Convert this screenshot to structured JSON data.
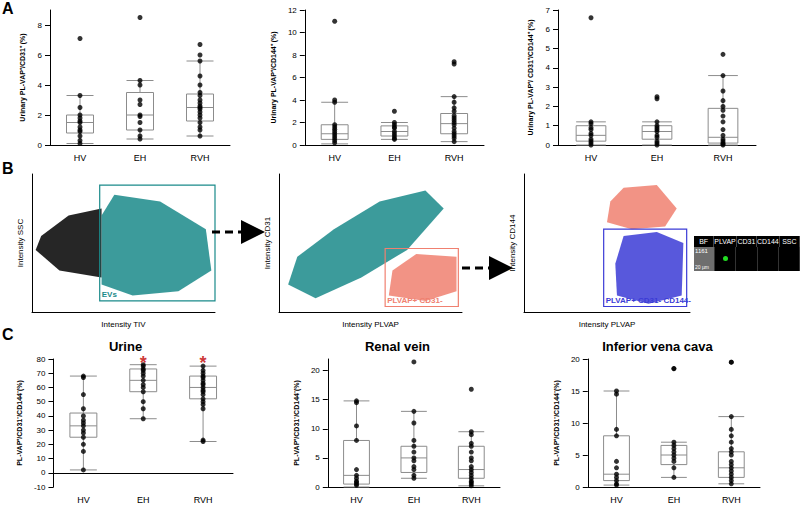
{
  "panel_labels": [
    "A",
    "B",
    "C"
  ],
  "chart_data": [
    {
      "panel": "A",
      "type": "boxplot",
      "ylabel": "Urinary PL-VAP⁺/CD31⁺ (%)",
      "categories": [
        "HV",
        "EH",
        "RVH"
      ],
      "boxes": [
        [
          0.1,
          0.8,
          1.5,
          2.0,
          3.3
        ],
        [
          0.4,
          1.0,
          2.0,
          3.5,
          4.3
        ],
        [
          0.6,
          1.6,
          2.5,
          3.4,
          5.6
        ]
      ],
      "points": [
        [
          7.1,
          3.3,
          2.5,
          2.0,
          1.8,
          1.6,
          1.5,
          1.2,
          1.0,
          0.9,
          0.6,
          0.3,
          0.1
        ],
        [
          8.5,
          4.3,
          4.0,
          3.0,
          2.7,
          2.0,
          1.9,
          1.5,
          1.0,
          0.6,
          0.4
        ],
        [
          6.7,
          6.0,
          5.6,
          4.6,
          4.0,
          3.5,
          3.3,
          3.0,
          2.8,
          2.6,
          2.5,
          2.4,
          2.2,
          2.0,
          1.8,
          1.5,
          1.2,
          1.0,
          0.6
        ]
      ],
      "ylim": [
        0,
        9
      ],
      "yticks": [
        0,
        2,
        4,
        6,
        8
      ],
      "color": "#000000",
      "grid": false
    },
    {
      "panel": "A",
      "type": "boxplot",
      "ylabel": "Urinary PL-VAP⁺/CD144⁺ (%)",
      "categories": [
        "HV",
        "EH",
        "RVH"
      ],
      "boxes": [
        [
          0.1,
          0.5,
          1.0,
          1.8,
          3.8
        ],
        [
          0.5,
          0.8,
          1.2,
          1.7,
          2.0
        ],
        [
          0.3,
          1.0,
          1.9,
          2.8,
          4.3
        ]
      ],
      "points": [
        [
          11,
          4.0,
          3.8,
          1.8,
          1.6,
          1.4,
          1.2,
          1.0,
          0.8,
          0.6,
          0.4,
          0.2
        ],
        [
          3.0,
          2.0,
          1.8,
          1.6,
          1.5,
          1.2,
          1.0,
          0.8,
          0.6,
          0.5
        ],
        [
          7.4,
          7.2,
          4.3,
          3.8,
          3.3,
          3.0,
          2.6,
          2.4,
          2.2,
          2.0,
          1.8,
          1.5,
          1.2,
          1.0,
          0.8,
          0.6,
          0.3
        ]
      ],
      "ylim": [
        0,
        12
      ],
      "yticks": [
        0,
        2,
        4,
        6,
        8,
        10,
        12
      ],
      "color": "#000000",
      "grid": false
    },
    {
      "panel": "A",
      "type": "boxplot",
      "ylabel": "Urinary PL-VAP⁺/ CD31⁺/CD144⁺ (%)",
      "categories": [
        "HV",
        "EH",
        "RVH"
      ],
      "boxes": [
        [
          0,
          0.2,
          0.5,
          1.0,
          1.2
        ],
        [
          0,
          0.3,
          0.7,
          1.0,
          1.2
        ],
        [
          0,
          0.1,
          0.4,
          1.9,
          3.6
        ]
      ],
      "points": [
        [
          6.6,
          1.2,
          1.1,
          0.9,
          0.8,
          0.6,
          0.5,
          0.3,
          0.2,
          0.1,
          0
        ],
        [
          2.5,
          2.4,
          1.2,
          1.0,
          0.9,
          0.8,
          0.7,
          0.5,
          0.4,
          0.2,
          0.1,
          0
        ],
        [
          4.7,
          3.6,
          2.8,
          2.3,
          2.0,
          1.8,
          1.5,
          1.2,
          0.8,
          0.5,
          0.3,
          0.2,
          0.1,
          0.05,
          0
        ]
      ],
      "ylim": [
        0,
        7
      ],
      "yticks": [
        0,
        1,
        2,
        3,
        4,
        5,
        6,
        7
      ],
      "color": "#000000",
      "grid": false
    },
    {
      "panel": "B",
      "type": "scatter",
      "xlabel": "Intensity TIV",
      "ylabel": "Intensity SSC",
      "xlim": [
        0,
        100
      ],
      "ylim": [
        0,
        100
      ],
      "tick_labels": false,
      "populations": [
        {
          "color": "#000000",
          "polygon": [
            [
              2,
              45
            ],
            [
              15,
              30
            ],
            [
              38,
              25
            ],
            [
              38,
              75
            ],
            [
              20,
              70
            ],
            [
              5,
              55
            ]
          ]
        },
        {
          "color": "#1a8a8a",
          "polygon": [
            [
              38,
              20
            ],
            [
              55,
              12
            ],
            [
              80,
              15
            ],
            [
              98,
              30
            ],
            [
              95,
              60
            ],
            [
              70,
              80
            ],
            [
              45,
              85
            ],
            [
              38,
              70
            ]
          ]
        }
      ],
      "gates": [
        {
          "label": "EVs",
          "color": "#1a8a8a",
          "x": [
            37,
            100
          ],
          "y": [
            8,
            92
          ]
        }
      ]
    },
    {
      "panel": "B",
      "type": "scatter",
      "xlabel": "Intensity PLVAP",
      "ylabel": "Intensity CD31",
      "xlim": [
        0,
        100
      ],
      "ylim": [
        0,
        100
      ],
      "tick_labels": false,
      "populations": [
        {
          "color": "#1a8a8a",
          "polygon": [
            [
              5,
              20
            ],
            [
              20,
              10
            ],
            [
              45,
              25
            ],
            [
              70,
              45
            ],
            [
              90,
              75
            ],
            [
              80,
              88
            ],
            [
              55,
              80
            ],
            [
              30,
              60
            ],
            [
              10,
              40
            ]
          ]
        },
        {
          "color": "#f08070",
          "polygon": [
            [
              60,
              12
            ],
            [
              80,
              8
            ],
            [
              97,
              15
            ],
            [
              97,
              40
            ],
            [
              75,
              42
            ],
            [
              62,
              30
            ]
          ]
        }
      ],
      "gates": [
        {
          "label": "PLVAP+ CD31-",
          "color": "#f08070",
          "x": [
            58,
            98
          ],
          "y": [
            4,
            46
          ]
        }
      ]
    },
    {
      "panel": "B",
      "type": "scatter",
      "xlabel": "Intensity PLVAP",
      "ylabel": "Intensity CD144",
      "xlim": [
        0,
        100
      ],
      "ylim": [
        0,
        100
      ],
      "tick_labels": false,
      "populations": [
        {
          "color": "#f08070",
          "polygon": [
            [
              50,
              65
            ],
            [
              65,
              60
            ],
            [
              85,
              62
            ],
            [
              92,
              75
            ],
            [
              80,
              92
            ],
            [
              60,
              90
            ],
            [
              52,
              80
            ]
          ]
        },
        {
          "color": "#3b3bd6",
          "polygon": [
            [
              56,
              12
            ],
            [
              75,
              6
            ],
            [
              95,
              12
            ],
            [
              96,
              50
            ],
            [
              80,
              58
            ],
            [
              60,
              55
            ],
            [
              55,
              35
            ]
          ]
        }
      ],
      "gates": [
        {
          "label": "PLVAP+ CD31- CD144-",
          "color": "#3b3bd6",
          "x": [
            48,
            98
          ],
          "y": [
            4,
            60
          ]
        }
      ]
    },
    {
      "panel": "C",
      "type": "boxplot",
      "title": "Urine",
      "ylabel": "PL-VAP⁺/CD31⁻/CD144⁻(%)",
      "categories": [
        "HV",
        "EH",
        "RVH"
      ],
      "boxes": [
        [
          2,
          25,
          33,
          42,
          68
        ],
        [
          38,
          57,
          65,
          73,
          76
        ],
        [
          22,
          52,
          60,
          68,
          75
        ]
      ],
      "points": [
        [
          68,
          67,
          55,
          45,
          40,
          37,
          35,
          33,
          30,
          28,
          25,
          20,
          15,
          2
        ],
        [
          76,
          75,
          73,
          72,
          70,
          68,
          65,
          62,
          60,
          57,
          50,
          45,
          38
        ],
        [
          75,
          72,
          70,
          68,
          67,
          65,
          63,
          62,
          60,
          58,
          57,
          55,
          52,
          50,
          48,
          45,
          23,
          22
        ]
      ],
      "ylim": [
        -10,
        80
      ],
      "yticks": [
        -10,
        0,
        10,
        20,
        30,
        40,
        50,
        60,
        70,
        80
      ],
      "color": "#000000",
      "grid": false,
      "annotations": [
        {
          "category": "EH",
          "y": 77,
          "text": "*",
          "color": "#c00000"
        },
        {
          "category": "RVH",
          "y": 77,
          "text": "*",
          "color": "#c00000"
        }
      ]
    },
    {
      "panel": "C",
      "type": "boxplot",
      "title": "Renal vein",
      "ylabel": "PL-VAP⁺/CD31⁻/CD144⁻(%)",
      "categories": [
        "HV",
        "EH",
        "RVH"
      ],
      "boxes": [
        [
          0,
          0.5,
          2,
          8,
          14.8
        ],
        [
          1.5,
          2.5,
          5,
          7,
          13
        ],
        [
          0.2,
          1.5,
          3,
          7,
          9.5
        ]
      ],
      "points": [
        [
          14.8,
          14.5,
          10.5,
          8,
          3,
          2,
          1.5,
          1,
          0.8,
          0.5,
          0.3
        ],
        [
          21.5,
          13,
          11,
          8,
          7,
          6,
          5,
          4.5,
          3.5,
          3,
          2,
          1.5
        ],
        [
          16.8,
          9.5,
          9,
          7.5,
          7,
          6,
          5,
          4.5,
          3.5,
          3,
          2.5,
          2,
          1.5,
          1,
          0.8,
          0.5,
          0.2
        ]
      ],
      "ylim": [
        0,
        22
      ],
      "yticks": [
        0,
        5,
        10,
        15,
        20
      ],
      "color": "#000000",
      "grid": false
    },
    {
      "panel": "C",
      "type": "boxplot",
      "title": "Inferior vena cava",
      "ylabel": "PL-VAP⁺/CD31⁻/CD144⁻(%)",
      "categories": [
        "HV",
        "EH",
        "RVH"
      ],
      "boxes": [
        [
          0.3,
          1,
          2,
          8,
          15
        ],
        [
          1.5,
          3.5,
          5,
          6.5,
          7
        ],
        [
          0.5,
          1.5,
          3,
          5.5,
          11
        ]
      ],
      "points": [
        [
          15,
          14.5,
          9,
          8,
          4,
          3,
          2,
          1.5,
          1,
          0.5,
          0.3
        ],
        [
          18.5,
          18.5,
          7,
          6.5,
          6,
          5.5,
          5,
          4.5,
          4,
          3,
          1.5
        ],
        [
          19.5,
          19.5,
          11,
          9,
          8,
          7,
          6,
          5.5,
          5,
          4,
          3.5,
          3,
          2.5,
          2,
          1.5,
          1,
          0.5
        ]
      ],
      "ylim": [
        0,
        20
      ],
      "yticks": [
        0,
        5,
        10,
        15,
        20
      ],
      "color": "#000000",
      "grid": false
    }
  ],
  "image_strip": {
    "channels": [
      "BF",
      "PLVAP",
      "CD31",
      "CD144",
      "SSC"
    ],
    "event_id": "1161",
    "scale_bar": "20 µm"
  }
}
